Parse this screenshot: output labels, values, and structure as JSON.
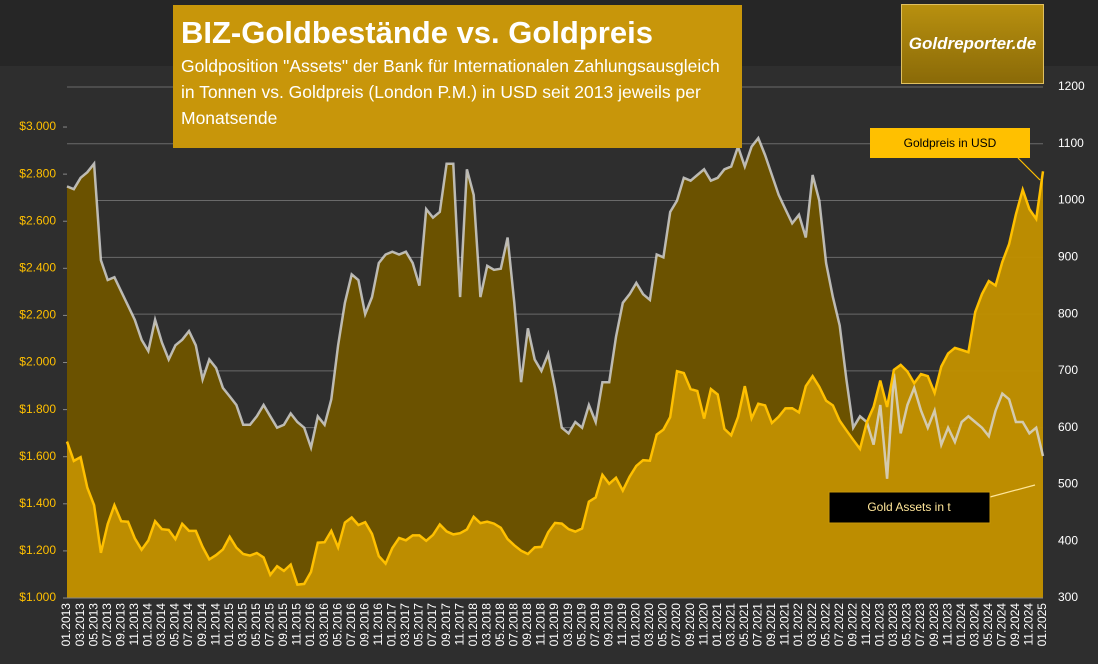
{
  "chart_data": {
    "type": "area",
    "title": "BIZ-Goldbestände vs. Goldpreis",
    "subtitle": "Goldposition \"Assets\" der Bank für Internationalen Zahlungsausgleich in Tonnen vs. Goldpreis (London P.M.) in USD seit 2013 jeweils per Monatsende",
    "logo": "Goldreporter.de",
    "categories": [
      "01.2013",
      null,
      "03.2013",
      null,
      "05.2013",
      null,
      "07.2013",
      null,
      "09.2013",
      null,
      "11.2013",
      null,
      "01.2014",
      null,
      "03.2014",
      null,
      "05.2014",
      null,
      "07.2014",
      null,
      "09.2014",
      null,
      "11.2014",
      null,
      "01.2015",
      null,
      "03.2015",
      null,
      "05.2015",
      null,
      "07.2015",
      null,
      "09.2015",
      null,
      "11.2015",
      null,
      "01.2016",
      null,
      "03.2016",
      null,
      "05.2016",
      null,
      "07.2016",
      null,
      "09.2016",
      null,
      "11.2016",
      null,
      "01.2017",
      null,
      "03.2017",
      null,
      "05.2017",
      null,
      "07.2017",
      null,
      "09.2017",
      null,
      "11.2017",
      null,
      "01.2018",
      null,
      "03.2018",
      null,
      "05.2018",
      null,
      "07.2018",
      null,
      "09.2018",
      null,
      "11.2018",
      null,
      "01.2019",
      null,
      "03.2019",
      null,
      "05.2019",
      null,
      "07.2019",
      null,
      "09.2019",
      null,
      "11.2019",
      null,
      "01.2020",
      null,
      "03.2020",
      null,
      "05.2020",
      null,
      "07.2020",
      null,
      "09.2020",
      null,
      "11.2020",
      null,
      "01.2021",
      null,
      "03.2021",
      null,
      "05.2021",
      null,
      "07.2021",
      null,
      "09.2021",
      null,
      "11.2021",
      null,
      "01.2022",
      null,
      "03.2022",
      null,
      "05.2022",
      null,
      "07.2022",
      null,
      "09.2022",
      null,
      "11.2022",
      null,
      "01.2023",
      null,
      "03.2023",
      null,
      "05.2023",
      null,
      "07.2023",
      null,
      "09.2023",
      null,
      "11.2023",
      null,
      "01.2024",
      null,
      "03.2024",
      null,
      "05.2024",
      null,
      "07.2024",
      null,
      "09.2024",
      null,
      "11.2024",
      null,
      "01.2025"
    ],
    "series": [
      {
        "name": "Gold Assets in t",
        "axis": "y2",
        "color": "#d9d9d9",
        "fill": "#6b5200",
        "values": [
          1025,
          1020,
          1040,
          1050,
          1065,
          895,
          860,
          865,
          840,
          815,
          790,
          755,
          735,
          790,
          750,
          720,
          745,
          755,
          770,
          745,
          685,
          720,
          705,
          670,
          655,
          640,
          605,
          605,
          620,
          640,
          620,
          600,
          605,
          625,
          610,
          600,
          565,
          620,
          605,
          650,
          745,
          820,
          870,
          860,
          800,
          830,
          890,
          905,
          910,
          905,
          910,
          890,
          850,
          985,
          970,
          980,
          1065,
          1065,
          830,
          1055,
          1010,
          830,
          885,
          878,
          880,
          935,
          820,
          680,
          775,
          720,
          700,
          730,
          670,
          600,
          590,
          610,
          600,
          640,
          610,
          680,
          680,
          760,
          820,
          835,
          855,
          835,
          825,
          905,
          900,
          980,
          1000,
          1040,
          1035,
          1045,
          1055,
          1035,
          1040,
          1055,
          1060,
          1095,
          1060,
          1095,
          1110,
          1080,
          1045,
          1010,
          985,
          960,
          975,
          935,
          1045,
          1000,
          890,
          830,
          780,
          685,
          600,
          620,
          610,
          570,
          640,
          510,
          695,
          590,
          640,
          670,
          630,
          600,
          630,
          570,
          600,
          575,
          610,
          620,
          610,
          600,
          585,
          630,
          660,
          650,
          610,
          610,
          590,
          600,
          550
        ]
      },
      {
        "name": "Goldpreis in USD",
        "axis": "y",
        "color": "#ffc000",
        "fill": "#c08f00",
        "values": [
          1664,
          1582,
          1598,
          1469,
          1394,
          1192,
          1314,
          1394,
          1326,
          1324,
          1253,
          1205,
          1244,
          1326,
          1292,
          1289,
          1250,
          1315,
          1285,
          1285,
          1217,
          1164,
          1182,
          1206,
          1260,
          1214,
          1187,
          1180,
          1191,
          1172,
          1098,
          1135,
          1115,
          1142,
          1057,
          1060,
          1111,
          1235,
          1237,
          1285,
          1215,
          1320,
          1342,
          1310,
          1322,
          1272,
          1178,
          1146,
          1212,
          1255,
          1245,
          1266,
          1266,
          1243,
          1268,
          1312,
          1283,
          1270,
          1275,
          1291,
          1345,
          1318,
          1324,
          1316,
          1298,
          1250,
          1224,
          1201,
          1187,
          1215,
          1217,
          1279,
          1319,
          1316,
          1292,
          1282,
          1295,
          1409,
          1427,
          1523,
          1485,
          1511,
          1456,
          1515,
          1561,
          1585,
          1583,
          1694,
          1715,
          1768,
          1963,
          1955,
          1887,
          1879,
          1762,
          1887,
          1864,
          1718,
          1691,
          1768,
          1900,
          1763,
          1825,
          1818,
          1743,
          1770,
          1805,
          1806,
          1788,
          1900,
          1942,
          1897,
          1838,
          1818,
          1753,
          1712,
          1672,
          1633,
          1746,
          1812,
          1923,
          1811,
          1969,
          1990,
          1962,
          1912,
          1951,
          1942,
          1871,
          1983,
          2038,
          2062,
          2053,
          2044,
          2214,
          2291,
          2346,
          2327,
          2427,
          2503,
          2629,
          2734,
          2651,
          2610,
          2812
        ]
      }
    ],
    "ylim": [
      1000,
      3170
    ],
    "yticks": [
      {
        "value": 1000,
        "label": "$1.000"
      },
      {
        "value": 1200,
        "label": "$1.200"
      },
      {
        "value": 1400,
        "label": "$1.400"
      },
      {
        "value": 1600,
        "label": "$1.600"
      },
      {
        "value": 1800,
        "label": "$1.800"
      },
      {
        "value": 2000,
        "label": "$2.000"
      },
      {
        "value": 2200,
        "label": "$2.200"
      },
      {
        "value": 2400,
        "label": "$2.400"
      },
      {
        "value": 2600,
        "label": "$2.600"
      },
      {
        "value": 2800,
        "label": "$2.800"
      },
      {
        "value": 3000,
        "label": "$3.000"
      }
    ],
    "y2lim": [
      300,
      1200
    ],
    "y2ticks": [
      300,
      400,
      500,
      600,
      700,
      800,
      900,
      1000,
      1100,
      1200
    ],
    "grid": true
  }
}
